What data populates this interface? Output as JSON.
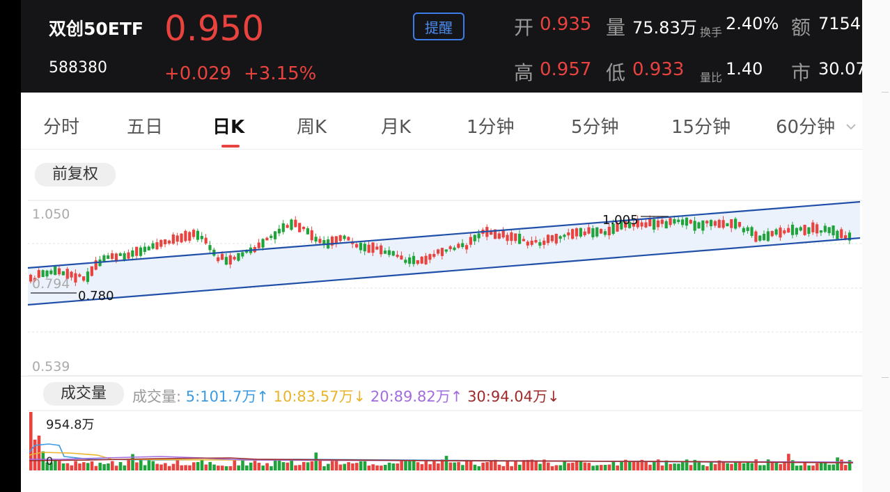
{
  "header": {
    "name": "双创50ETF",
    "code": "588380",
    "price": "0.950",
    "change": "+0.029",
    "change_pct": "+3.15%",
    "alert_label": "提醒",
    "open_label": "开",
    "open_value": "0.935",
    "volume_label": "量",
    "volume_value": "75.83万",
    "turnover_label": "换手",
    "turnover_value": "2.40%",
    "amount_label": "额",
    "amount_value": "7154",
    "high_label": "高",
    "high_value": "0.957",
    "low_label": "低",
    "low_value": "0.933",
    "vol_ratio_label": "量比",
    "vol_ratio_value": "1.40",
    "market_cap_label": "市",
    "market_cap_value": "30.07"
  },
  "tabs": [
    "分时",
    "五日",
    "日K",
    "周K",
    "月K",
    "1分钟",
    "5分钟",
    "15分钟",
    "60分钟"
  ],
  "active_tab": "日K",
  "adjust_label": "前复权",
  "price_chart": {
    "y_top_label": "1.050",
    "y_bottom_label": "0.539",
    "y_mid_label": "0.794",
    "low_marker": "0.780",
    "high_marker": "1.005"
  },
  "volume_panel": {
    "label": "成交量",
    "legend_prefix": "成交量:",
    "ma5": "5:101.7万",
    "ma10": "10:83.57万",
    "ma20": "20:89.82万",
    "ma30": "30:94.04万",
    "max_label": "954.8万",
    "zero_label": "0"
  },
  "colors": {
    "up": "#e8433f",
    "down": "#1fa33a",
    "channel": "#1f4fa8",
    "ma5": "#3b9ae1",
    "ma10": "#e9b429",
    "ma20": "#a26be0",
    "ma30": "#9e2a2a"
  }
}
